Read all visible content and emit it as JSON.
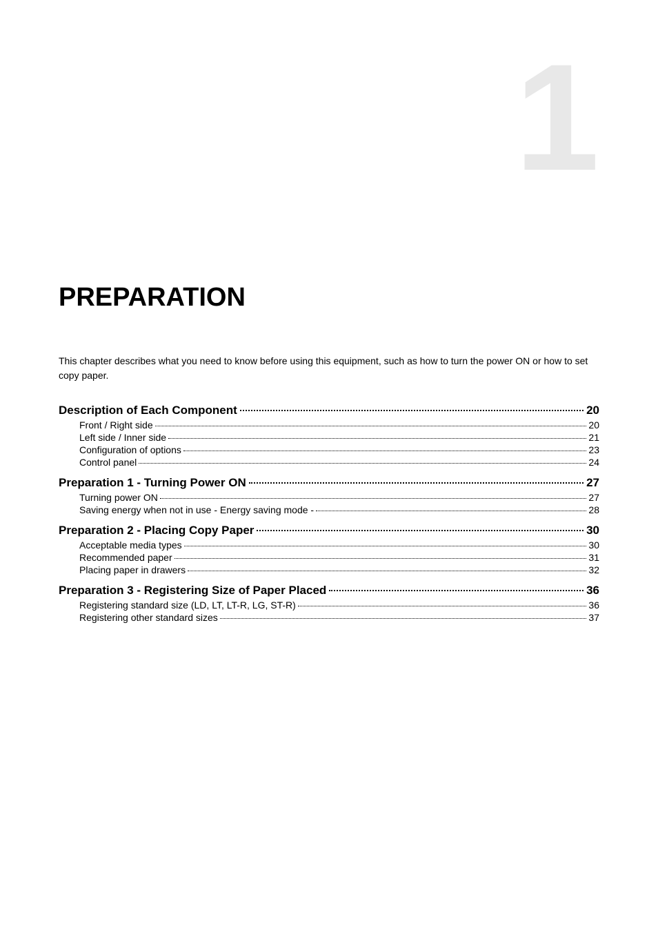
{
  "chapter_number": "1",
  "chapter_title": "PREPARATION",
  "intro_text": "This chapter describes what you need to know before using this equipment, such as how to turn the power ON or how to set copy paper.",
  "toc": {
    "sections": [
      {
        "heading": "Description of Each Component",
        "page": "20",
        "items": [
          {
            "text": "Front / Right side",
            "page": "20"
          },
          {
            "text": "Left side / Inner side",
            "page": "21"
          },
          {
            "text": "Configuration of options",
            "page": "23"
          },
          {
            "text": "Control panel",
            "page": "24"
          }
        ]
      },
      {
        "heading": "Preparation 1 - Turning Power ON",
        "page": "27",
        "items": [
          {
            "text": "Turning power ON",
            "page": "27"
          },
          {
            "text": "Saving energy when not in use - Energy saving mode -",
            "page": "28"
          }
        ]
      },
      {
        "heading": "Preparation 2 - Placing Copy Paper",
        "page": "30",
        "items": [
          {
            "text": "Acceptable media types",
            "page": "30"
          },
          {
            "text": "Recommended paper",
            "page": "31"
          },
          {
            "text": "Placing paper in drawers",
            "page": "32"
          }
        ]
      },
      {
        "heading": "Preparation 3 - Registering Size of Paper Placed",
        "page": "36",
        "items": [
          {
            "text": "Registering standard size (LD, LT, LT-R, LG, ST-R)",
            "page": "36"
          },
          {
            "text": "Registering other standard sizes",
            "page": "37"
          }
        ]
      }
    ]
  },
  "colors": {
    "chapter_number_color": "#e8e8e8",
    "text_color": "#000000",
    "background_color": "#ffffff"
  },
  "typography": {
    "chapter_number_fontsize": 220,
    "chapter_title_fontsize": 38,
    "intro_fontsize": 14,
    "toc_heading_fontsize": 17,
    "toc_item_fontsize": 14
  }
}
